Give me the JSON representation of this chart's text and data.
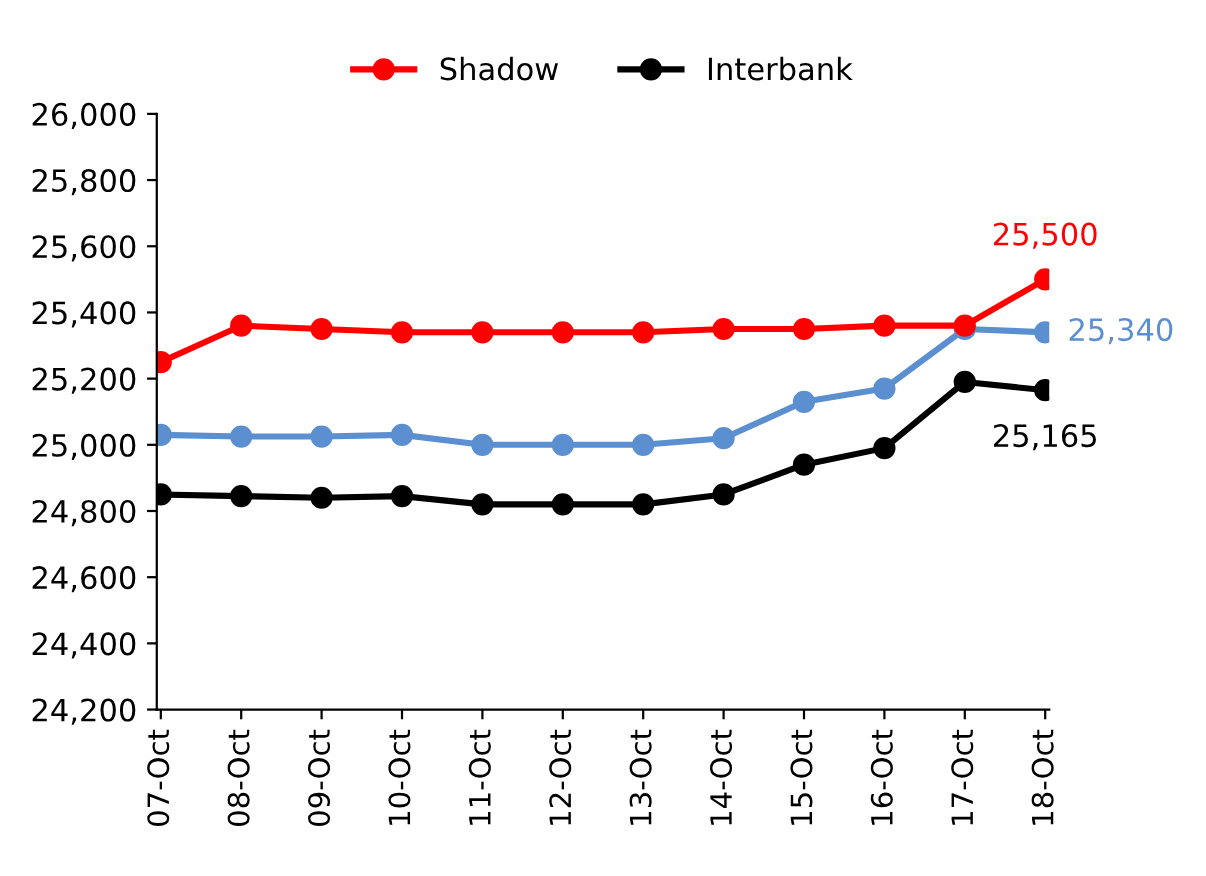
{
  "chart_data": {
    "type": "line",
    "categories": [
      "07-Oct",
      "08-Oct",
      "09-Oct",
      "10-Oct",
      "11-Oct",
      "12-Oct",
      "13-Oct",
      "14-Oct",
      "15-Oct",
      "16-Oct",
      "17-Oct",
      "18-Oct"
    ],
    "series": [
      {
        "color": "#5b8fd0",
        "values": [
          25030,
          25025,
          25025,
          25030,
          25000,
          25000,
          25000,
          25020,
          25130,
          25170,
          25350,
          25340
        ],
        "value_labels": [
          null,
          null,
          null,
          null,
          null,
          null,
          null,
          null,
          null,
          null,
          null,
          "25,340"
        ]
      },
      {
        "name": "Shadow",
        "color": "#ff0000",
        "values": [
          25250,
          25360,
          25350,
          25340,
          25340,
          25340,
          25340,
          25350,
          25350,
          25360,
          25360,
          25500
        ],
        "value_labels": [
          null,
          null,
          null,
          null,
          null,
          null,
          null,
          null,
          null,
          null,
          null,
          "25,500"
        ]
      },
      {
        "name": "Interbank",
        "color": "#000000",
        "values": [
          24850,
          24845,
          24840,
          24845,
          24820,
          24820,
          24820,
          24850,
          24940,
          24990,
          25190,
          25165
        ],
        "value_labels": [
          null,
          null,
          null,
          null,
          null,
          null,
          null,
          null,
          null,
          null,
          null,
          "25,165"
        ]
      }
    ],
    "ylim": [
      24200,
      26000
    ],
    "yticks": [
      {
        "value": 24200,
        "label": "24,200"
      },
      {
        "value": 24400,
        "label": "24,400"
      },
      {
        "value": 24600,
        "label": "24,600"
      },
      {
        "value": 24800,
        "label": "24,800"
      },
      {
        "value": 25000,
        "label": "25,000"
      },
      {
        "value": 25200,
        "label": "25,200"
      },
      {
        "value": 25400,
        "label": "25,400"
      },
      {
        "value": 25600,
        "label": "25,600"
      },
      {
        "value": 25800,
        "label": "25,800"
      },
      {
        "value": 26000,
        "label": "26,000"
      }
    ],
    "grid": false,
    "legend": "top",
    "marker": "circle",
    "line_style": "solid"
  }
}
